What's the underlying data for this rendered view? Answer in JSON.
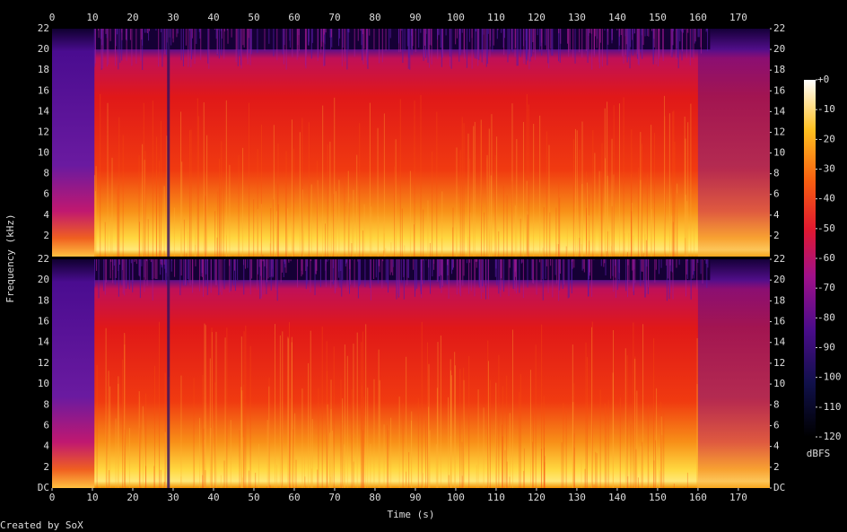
{
  "chart_data": {
    "type": "spectrogram",
    "x_label": "Time (s)",
    "y_label": "Frequency (kHz)",
    "colorbar_label": "dBFS",
    "footer": "Created by SoX",
    "xlim": [
      0,
      177.8
    ],
    "xticks": [
      0,
      10,
      20,
      30,
      40,
      50,
      60,
      70,
      80,
      90,
      100,
      110,
      120,
      130,
      140,
      150,
      160,
      170
    ],
    "ylim": [
      0,
      22
    ],
    "panels": [
      {
        "yticks": [
          2,
          4,
          6,
          8,
          10,
          12,
          14,
          16,
          18,
          20,
          22
        ]
      },
      {
        "yticks": [
          {
            "value": 0,
            "label": "DC"
          },
          2,
          4,
          6,
          8,
          10,
          12,
          14,
          16,
          18,
          20,
          22
        ]
      }
    ],
    "zlim": [
      -120,
      0
    ],
    "zticks": [
      {
        "value": 0,
        "label": "+0"
      },
      -10,
      -20,
      -30,
      -40,
      -50,
      -60,
      -70,
      -80,
      -90,
      -100,
      -110,
      -120
    ]
  }
}
